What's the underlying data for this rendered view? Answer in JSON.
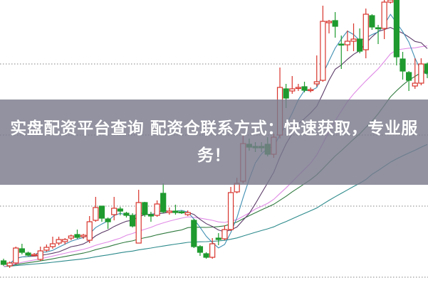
{
  "banner": {
    "title": "实盘配资平台查询 配资仓联系方式：快速获取，专业服务！"
  },
  "chart_data": {
    "type": "candlestick",
    "title": "",
    "xlabel": "",
    "ylabel": "",
    "ylim": [
      0,
      40
    ],
    "grid": true,
    "gridlines": [
      1,
      11,
      21,
      31
    ],
    "colors": {
      "up": "#d8342c",
      "down": "#1e9a2e",
      "grid": "#9a9a9a"
    },
    "moving_averages": [
      {
        "period": 5,
        "color": "#3f8fb3"
      },
      {
        "period": 10,
        "color": "#5b3a68"
      },
      {
        "period": 20,
        "color": "#e08ae6"
      },
      {
        "period": 30,
        "color": "#2f7a3e"
      },
      {
        "period": 60,
        "color": "#2d8a8c"
      }
    ],
    "candles_ohlc": [
      [
        3.3,
        2.8,
        3.6,
        2.6
      ],
      [
        2.6,
        3.0,
        3.2,
        2.3
      ],
      [
        3.0,
        5.1,
        5.3,
        2.8
      ],
      [
        5.0,
        4.5,
        5.7,
        4.2
      ],
      [
        4.4,
        4.1,
        4.6,
        3.9
      ],
      [
        4.1,
        4.2,
        4.4,
        3.9
      ],
      [
        3.5,
        4.7,
        5.3,
        3.3
      ],
      [
        4.8,
        5.2,
        5.6,
        4.6
      ],
      [
        5.3,
        5.7,
        6.7,
        5.0
      ],
      [
        5.8,
        6.3,
        6.7,
        5.5
      ],
      [
        6.0,
        6.3,
        6.5,
        5.6
      ],
      [
        6.5,
        6.8,
        7.0,
        6.2
      ],
      [
        7.0,
        6.6,
        7.7,
        6.4
      ],
      [
        6.7,
        6.9,
        7.1,
        6.4
      ],
      [
        6.2,
        8.8,
        9.6,
        5.8
      ],
      [
        9.0,
        10.8,
        12.3,
        8.8
      ],
      [
        11.0,
        9.3,
        11.0,
        8.8
      ],
      [
        9.2,
        8.8,
        9.4,
        7.8
      ],
      [
        9.8,
        10.7,
        12.3,
        9.0
      ],
      [
        10.6,
        10.3,
        10.9,
        9.7
      ],
      [
        10.0,
        9.7,
        10.2,
        9.4
      ],
      [
        9.7,
        8.2,
        10.0,
        8.0
      ],
      [
        5.8,
        11.5,
        13.3,
        5.8
      ],
      [
        11.5,
        9.8,
        11.6,
        9.5
      ],
      [
        9.8,
        9.6,
        10.2,
        8.8
      ],
      [
        9.7,
        11.3,
        11.8,
        9.5
      ],
      [
        12.8,
        10.2,
        14.2,
        10.0
      ],
      [
        10.1,
        10.3,
        10.8,
        9.8
      ],
      [
        10.3,
        10.1,
        11.2,
        9.8
      ],
      [
        10.2,
        10.1,
        10.4,
        9.9
      ],
      [
        9.8,
        10.1,
        10.4,
        9.6
      ],
      [
        9.0,
        5.3,
        9.2,
        5.1
      ],
      [
        5.3,
        4.5,
        5.5,
        4.0
      ],
      [
        4.3,
        3.8,
        4.5,
        3.6
      ],
      [
        3.8,
        5.7,
        6.5,
        3.6
      ],
      [
        6.5,
        6.3,
        7.2,
        5.5
      ],
      [
        6.4,
        7.7,
        8.3,
        6.2
      ],
      [
        7.7,
        12.9,
        13.7,
        7.5
      ],
      [
        13.0,
        14.2,
        15.0,
        12.8
      ],
      [
        14.5,
        19.8,
        21.0,
        14.2
      ],
      [
        19.7,
        19.3,
        20.5,
        18.8
      ],
      [
        19.4,
        19.2,
        20.0,
        18.6
      ],
      [
        19.4,
        19.2,
        20.0,
        18.6
      ],
      [
        19.7,
        18.3,
        20.7,
        18.0
      ],
      [
        18.3,
        20.7,
        21.2,
        17.8
      ],
      [
        21.0,
        27.7,
        30.5,
        20.5
      ],
      [
        27.5,
        26.2,
        28.2,
        24.8
      ],
      [
        27.2,
        27.5,
        29.3,
        26.8
      ],
      [
        27.6,
        27.7,
        28.2,
        27.2
      ],
      [
        27.8,
        27.3,
        28.5,
        27.0
      ],
      [
        27.3,
        27.4,
        27.7,
        27.0
      ],
      [
        28.2,
        28.5,
        32.2,
        27.8
      ],
      [
        28.7,
        37.0,
        39.2,
        28.5
      ],
      [
        36.8,
        37.0,
        37.2,
        35.3
      ],
      [
        37.1,
        36.3,
        38.3,
        34.7
      ],
      [
        33.8,
        33.7,
        35.0,
        30.3
      ],
      [
        33.7,
        34.2,
        35.7,
        32.8
      ],
      [
        34.2,
        34.5,
        36.7,
        32.8
      ],
      [
        34.5,
        32.8,
        36.0,
        32.5
      ],
      [
        33.0,
        38.0,
        38.8,
        31.8
      ],
      [
        37.8,
        36.2,
        38.0,
        35.8
      ],
      [
        36.1,
        36.0,
        36.5,
        33.8
      ],
      [
        36.0,
        39.7,
        40.0,
        34.5
      ],
      [
        39.7,
        40.0,
        40.0,
        39.5
      ],
      [
        40.0,
        32.0,
        40.0,
        30.8
      ],
      [
        31.7,
        30.0,
        32.7,
        28.8
      ],
      [
        29.8,
        28.7,
        30.0,
        27.2
      ],
      [
        27.9,
        28.3,
        31.8,
        27.5
      ],
      [
        28.3,
        31.0,
        31.8,
        28.0
      ],
      [
        31.0,
        29.7,
        31.2,
        29.0
      ]
    ]
  }
}
